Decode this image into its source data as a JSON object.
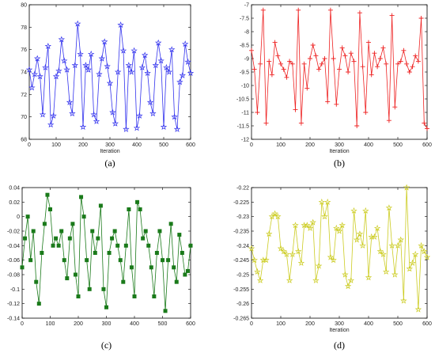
{
  "chart_data": [
    {
      "id": "a",
      "type": "line",
      "caption": "(a)",
      "xlabel": "Iteration",
      "ylabel": "",
      "xlim": [
        0,
        600
      ],
      "ylim": [
        68,
        80
      ],
      "xticks": [
        0,
        100,
        200,
        300,
        400,
        500,
        600
      ],
      "yticks": [
        68,
        70,
        72,
        74,
        76,
        78,
        80
      ],
      "grid": false,
      "marker": "star",
      "color": "#3333ee",
      "series": [
        {
          "x": [
            0,
            10,
            20,
            30,
            40,
            50,
            60,
            70,
            80,
            90,
            100,
            110,
            120,
            130,
            140,
            150,
            160,
            170,
            180,
            190,
            200,
            210,
            220,
            230,
            240,
            250,
            260,
            270,
            280,
            290,
            300,
            310,
            320,
            330,
            340,
            350,
            360,
            370,
            380,
            390,
            400,
            410,
            420,
            430,
            440,
            450,
            460,
            470,
            480,
            490,
            500,
            510,
            520,
            530,
            540,
            550,
            560,
            570,
            580,
            590,
            600
          ],
          "y": [
            74.2,
            72.6,
            73.8,
            75.2,
            73.6,
            70.2,
            74.4,
            76.3,
            69.3,
            70.1,
            73.6,
            74.1,
            76.9,
            75.0,
            74.2,
            71.3,
            70.3,
            74.6,
            78.3,
            75.6,
            69.1,
            74.6,
            74.2,
            75.6,
            70.2,
            69.6,
            73.8,
            75.2,
            76.7,
            74.5,
            73.0,
            70.4,
            69.4,
            74.0,
            78.2,
            75.9,
            68.9,
            74.6,
            74.0,
            75.9,
            69.0,
            70.1,
            74.4,
            75.5,
            73.9,
            71.3,
            70.3,
            74.6,
            76.6,
            75.0,
            69.1,
            74.4,
            74.0,
            76.0,
            70.0,
            68.9,
            73.1,
            73.7,
            76.5,
            74.9,
            73.9
          ]
        }
      ]
    },
    {
      "id": "b",
      "type": "line",
      "caption": "(b)",
      "xlabel": "Iteration",
      "ylabel": "",
      "xlim": [
        0,
        600
      ],
      "ylim": [
        -12,
        -7
      ],
      "xticks": [
        0,
        100,
        200,
        300,
        400,
        500,
        600
      ],
      "yticks": [
        -12,
        -11.5,
        -11,
        -10.5,
        -10,
        -9.5,
        -9,
        -8.5,
        -8,
        -7.5,
        -7
      ],
      "grid": false,
      "marker": "plus",
      "color": "#ee2222",
      "series": [
        {
          "x": [
            0,
            10,
            20,
            30,
            40,
            50,
            60,
            70,
            80,
            90,
            100,
            110,
            120,
            130,
            140,
            150,
            160,
            170,
            180,
            190,
            200,
            210,
            220,
            230,
            240,
            250,
            260,
            270,
            280,
            290,
            300,
            310,
            320,
            330,
            340,
            350,
            360,
            370,
            380,
            390,
            400,
            410,
            420,
            430,
            440,
            450,
            460,
            470,
            480,
            490,
            500,
            510,
            520,
            530,
            540,
            550,
            560,
            570,
            580,
            590,
            600
          ],
          "y": [
            -8.7,
            -9.4,
            -11.0,
            -9.2,
            -7.2,
            -11.4,
            -9.1,
            -9.6,
            -8.4,
            -8.9,
            -9.2,
            -9.4,
            -9.7,
            -9.1,
            -9.2,
            -10.9,
            -7.2,
            -11.4,
            -9.2,
            -10.1,
            -9.0,
            -8.5,
            -8.9,
            -9.4,
            -9.2,
            -9.0,
            -10.6,
            -7.2,
            -9.0,
            -10.7,
            -9.4,
            -8.6,
            -8.9,
            -9.5,
            -8.8,
            -9.1,
            -11.5,
            -7.3,
            -9.3,
            -11.0,
            -8.4,
            -9.6,
            -8.8,
            -9.3,
            -9.0,
            -8.6,
            -9.2,
            -11.3,
            -7.4,
            -10.8,
            -9.2,
            -9.1,
            -8.7,
            -9.2,
            -9.5,
            -9.3,
            -8.9,
            -9.1,
            -7.5,
            -11.4,
            -11.6
          ]
        }
      ]
    },
    {
      "id": "c",
      "type": "line",
      "caption": "(c)",
      "xlabel": "",
      "ylabel": "",
      "xlim": [
        0,
        600
      ],
      "ylim": [
        -0.14,
        0.04
      ],
      "xticks": [
        0,
        100,
        200,
        300,
        400,
        500,
        600
      ],
      "yticks": [
        -0.14,
        -0.12,
        -0.1,
        -0.08,
        -0.06,
        -0.04,
        -0.02,
        0,
        0.02,
        0.04
      ],
      "grid": false,
      "marker": "square",
      "color": "#1a7a1a",
      "series": [
        {
          "x": [
            0,
            10,
            20,
            30,
            40,
            50,
            60,
            70,
            80,
            90,
            100,
            110,
            120,
            130,
            140,
            150,
            160,
            170,
            180,
            190,
            200,
            210,
            220,
            230,
            240,
            250,
            260,
            270,
            280,
            290,
            300,
            310,
            320,
            330,
            340,
            350,
            360,
            370,
            380,
            390,
            400,
            410,
            420,
            430,
            440,
            450,
            460,
            470,
            480,
            490,
            500,
            510,
            520,
            530,
            540,
            550,
            560,
            570,
            580,
            590,
            600
          ],
          "y": [
            -0.07,
            -0.03,
            0.0,
            -0.06,
            -0.02,
            -0.09,
            -0.12,
            -0.05,
            -0.01,
            0.03,
            0.01,
            -0.04,
            -0.03,
            -0.04,
            -0.02,
            -0.06,
            -0.085,
            -0.03,
            -0.01,
            -0.08,
            -0.11,
            0.027,
            0.0,
            -0.06,
            -0.1,
            -0.02,
            -0.05,
            -0.03,
            0.015,
            -0.1,
            -0.125,
            -0.05,
            -0.03,
            -0.02,
            -0.04,
            -0.06,
            -0.09,
            -0.04,
            0.01,
            -0.07,
            -0.11,
            0.02,
            0.01,
            -0.03,
            -0.02,
            -0.04,
            -0.07,
            -0.11,
            -0.05,
            -0.02,
            -0.06,
            -0.13,
            -0.06,
            -0.01,
            -0.07,
            -0.09,
            -0.025,
            -0.05,
            -0.08,
            -0.075,
            -0.04
          ]
        }
      ]
    },
    {
      "id": "d",
      "type": "line",
      "caption": "(d)",
      "xlabel": "Iteration",
      "ylabel": "",
      "xlim": [
        0,
        600
      ],
      "ylim": [
        -0.265,
        -0.22
      ],
      "xticks": [
        0,
        100,
        200,
        300,
        400,
        500,
        600
      ],
      "yticks": [
        -0.265,
        -0.26,
        -0.255,
        -0.25,
        -0.245,
        -0.24,
        -0.235,
        -0.23,
        -0.225,
        -0.22
      ],
      "grid": false,
      "marker": "star",
      "color": "#cccc22",
      "series": [
        {
          "x": [
            0,
            10,
            20,
            30,
            40,
            50,
            60,
            70,
            80,
            90,
            100,
            110,
            120,
            130,
            140,
            150,
            160,
            170,
            180,
            190,
            200,
            210,
            220,
            230,
            240,
            250,
            260,
            270,
            280,
            290,
            300,
            310,
            320,
            330,
            340,
            350,
            360,
            370,
            380,
            390,
            400,
            410,
            420,
            430,
            440,
            450,
            460,
            470,
            480,
            490,
            500,
            510,
            520,
            530,
            540,
            550,
            560,
            570,
            580,
            590,
            600
          ],
          "y": [
            -0.241,
            -0.245,
            -0.249,
            -0.252,
            -0.245,
            -0.245,
            -0.236,
            -0.23,
            -0.229,
            -0.23,
            -0.241,
            -0.242,
            -0.243,
            -0.252,
            -0.243,
            -0.233,
            -0.242,
            -0.246,
            -0.233,
            -0.233,
            -0.234,
            -0.232,
            -0.252,
            -0.247,
            -0.225,
            -0.23,
            -0.225,
            -0.244,
            -0.245,
            -0.234,
            -0.235,
            -0.233,
            -0.25,
            -0.254,
            -0.252,
            -0.228,
            -0.238,
            -0.236,
            -0.24,
            -0.228,
            -0.251,
            -0.237,
            -0.237,
            -0.234,
            -0.242,
            -0.243,
            -0.249,
            -0.227,
            -0.24,
            -0.25,
            -0.24,
            -0.238,
            -0.259,
            -0.22,
            -0.248,
            -0.246,
            -0.243,
            -0.262,
            -0.24,
            -0.242,
            -0.244
          ]
        }
      ]
    }
  ]
}
